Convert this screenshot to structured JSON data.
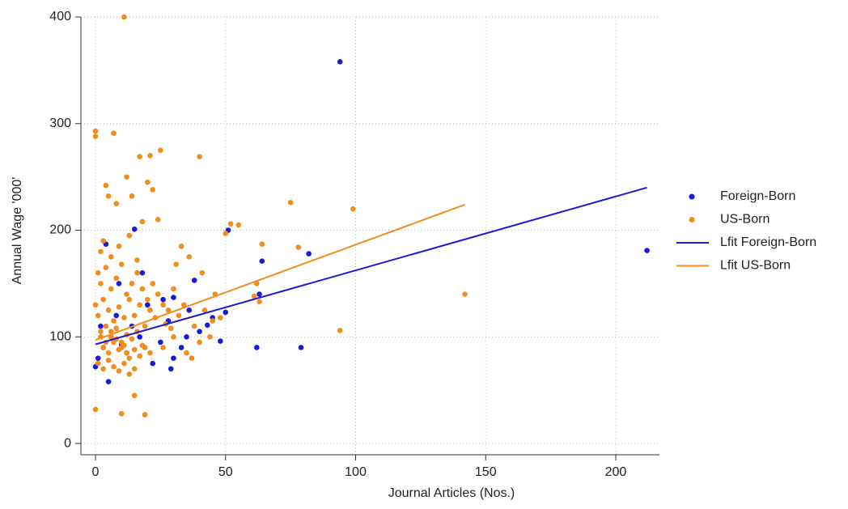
{
  "chart_data": {
    "type": "scatter",
    "xlabel": "Journal Articles (Nos.)",
    "ylabel": "Annual Wage '000'",
    "xlim": [
      -5.6,
      216.8
    ],
    "ylim": [
      -10.6,
      400
    ],
    "xticks": [
      0,
      50,
      100,
      150,
      200
    ],
    "yticks": [
      0,
      100,
      200,
      300,
      400
    ],
    "grid": true,
    "legend": "right",
    "series": [
      {
        "name": "Foreign-Born",
        "color": "#1a1adb",
        "mode": "markers",
        "x": [
          94,
          212,
          82,
          64,
          51,
          62,
          79,
          48,
          15,
          4,
          30,
          38,
          45,
          43,
          35,
          29,
          5,
          0,
          26,
          20,
          10,
          2,
          8,
          12,
          17,
          22,
          30,
          40,
          50,
          63,
          3,
          6,
          14,
          25,
          33,
          1,
          9,
          18,
          28,
          36
        ],
        "values": [
          358,
          181,
          178,
          171,
          200,
          90,
          90,
          96,
          201,
          187,
          137,
          153,
          118,
          111,
          100,
          70,
          58,
          72,
          135,
          130,
          93,
          110,
          120,
          85,
          100,
          75,
          80,
          105,
          123,
          140,
          90,
          100,
          110,
          95,
          90,
          80,
          150,
          160,
          115,
          125
        ]
      },
      {
        "name": "US-Born",
        "color": "#f28c1c",
        "mode": "markers",
        "x": [
          11,
          0,
          0,
          7,
          25,
          40,
          17,
          21,
          75,
          99,
          142,
          94,
          0,
          10,
          19,
          15,
          62,
          64,
          55,
          52,
          78,
          50,
          63,
          61,
          31,
          33,
          36,
          20,
          22,
          12,
          4,
          5,
          8,
          14,
          18,
          24,
          2,
          3,
          6,
          9,
          13,
          16,
          1,
          2,
          4,
          6,
          8,
          10,
          12,
          14,
          16,
          18,
          20,
          22,
          24,
          26,
          28,
          30,
          0,
          1,
          3,
          5,
          7,
          9,
          11,
          13,
          15,
          17,
          19,
          21,
          23,
          27,
          29,
          32,
          34,
          38,
          42,
          45,
          48,
          2,
          4,
          6,
          8,
          10,
          12,
          14,
          16,
          18,
          3,
          5,
          7,
          9,
          11,
          13,
          15,
          17,
          19,
          21,
          1,
          3,
          5,
          7,
          9,
          11,
          13,
          15,
          2,
          4,
          6,
          8,
          10,
          12,
          26,
          30,
          35,
          40,
          44,
          46,
          37,
          41
        ],
        "values": [
          400,
          293,
          288,
          291,
          275,
          269,
          269,
          270,
          226,
          220,
          140,
          106,
          32,
          28,
          27,
          45,
          150,
          187,
          205,
          206,
          184,
          197,
          133,
          138,
          168,
          185,
          175,
          245,
          238,
          250,
          242,
          232,
          225,
          232,
          208,
          210,
          180,
          190,
          175,
          185,
          195,
          172,
          160,
          150,
          165,
          145,
          155,
          168,
          140,
          150,
          160,
          145,
          135,
          150,
          140,
          130,
          125,
          145,
          130,
          120,
          135,
          125,
          115,
          128,
          118,
          135,
          120,
          130,
          110,
          125,
          118,
          112,
          108,
          120,
          130,
          110,
          125,
          115,
          118,
          105,
          110,
          100,
          108,
          95,
          102,
          98,
          105,
          92,
          90,
          85,
          95,
          88,
          92,
          80,
          88,
          82,
          90,
          85,
          75,
          70,
          78,
          72,
          68,
          75,
          65,
          70,
          100,
          95,
          105,
          98,
          90,
          85,
          90,
          100,
          85,
          95,
          100,
          140,
          80,
          160
        ]
      },
      {
        "name": "Lfit Foreign-Born",
        "color": "#1a1adb",
        "mode": "line",
        "x": [
          0,
          212
        ],
        "values": [
          93,
          240
        ]
      },
      {
        "name": "Lfit US-Born",
        "color": "#f28c1c",
        "mode": "line",
        "x": [
          0,
          142
        ],
        "values": [
          97,
          224
        ]
      }
    ]
  }
}
